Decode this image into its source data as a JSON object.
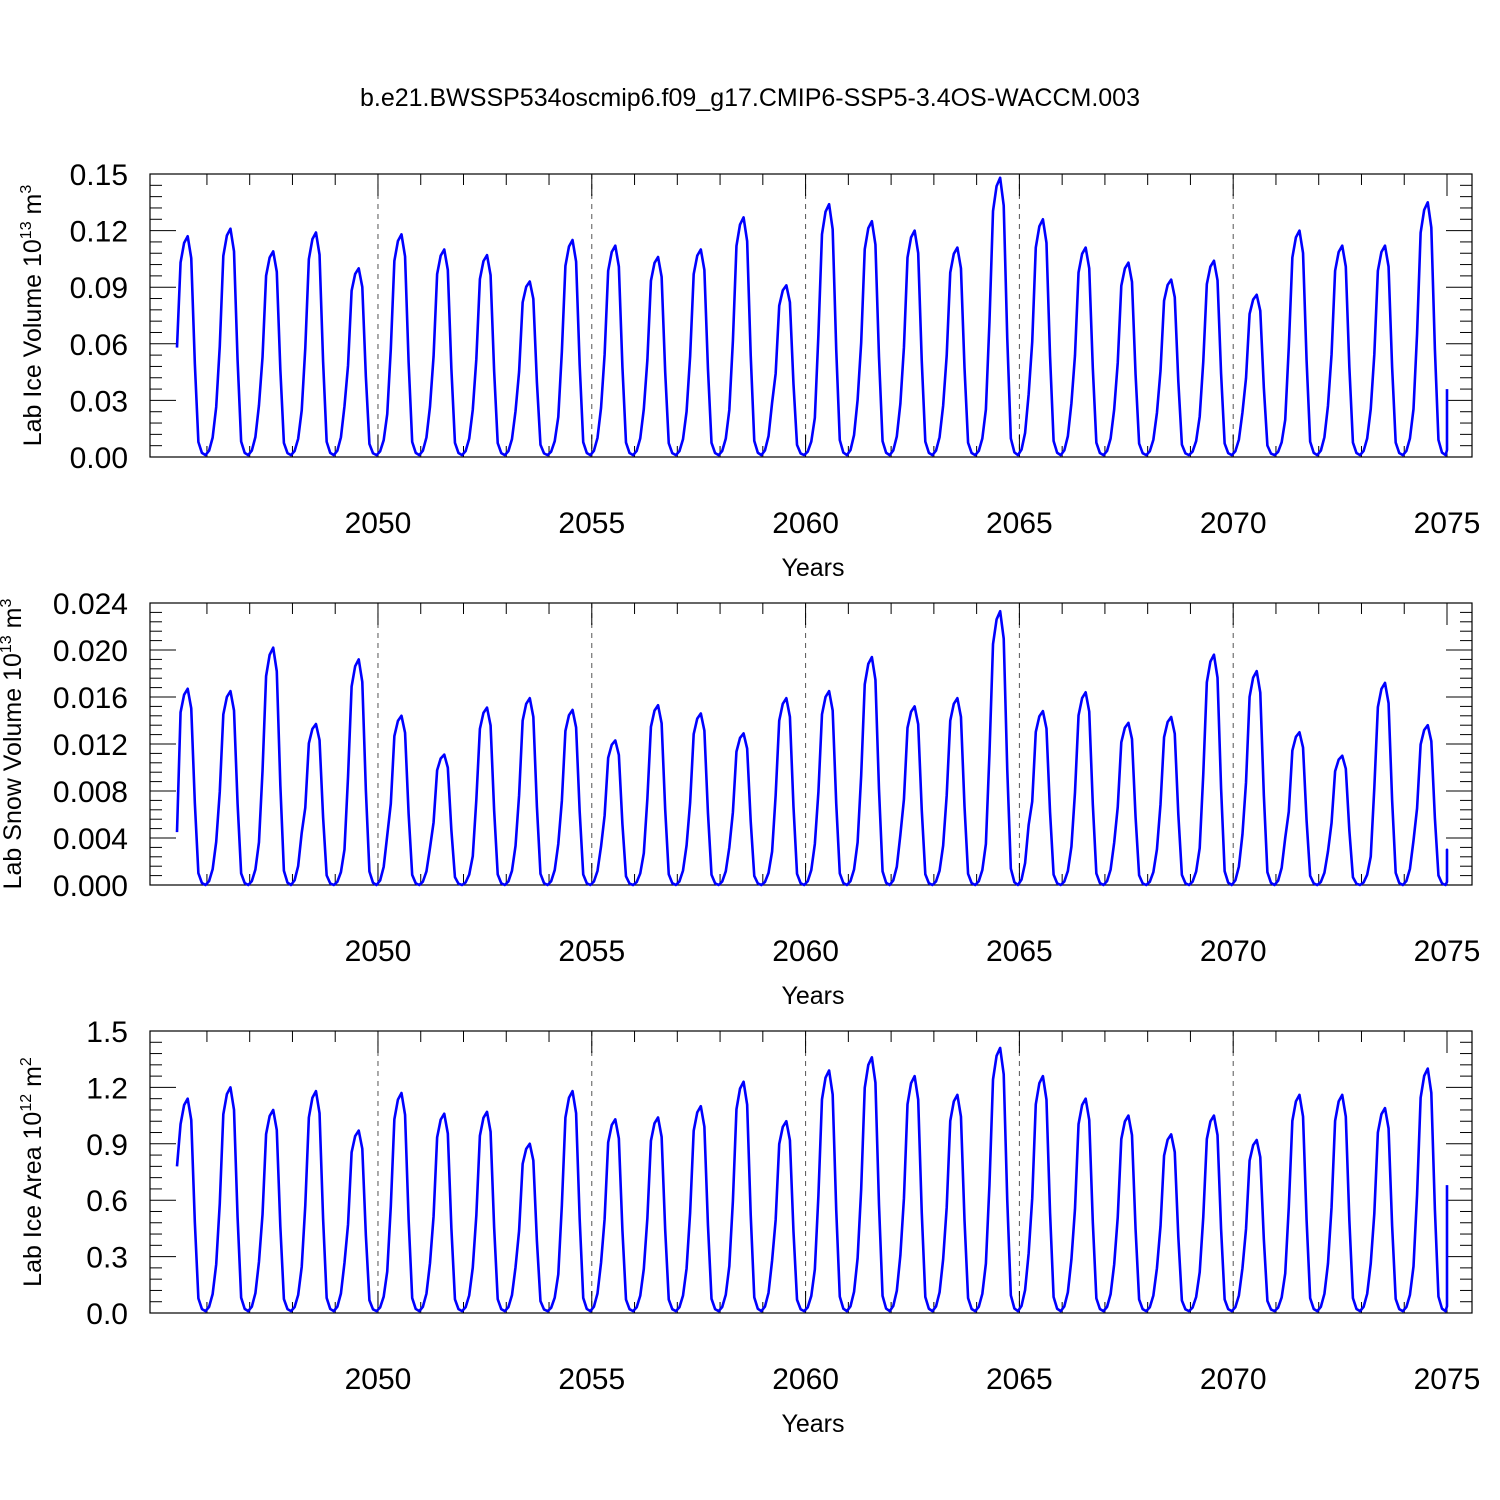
{
  "title": "b.e21.BWSSP534oscmip6.f09_g17.CMIP6-SSP5-3.4OS-WACCM.003",
  "chart_data": [
    {
      "type": "line",
      "title": "",
      "ylabel_main": "Lab Ice Volume 10",
      "ylabel_exp": "13",
      "ylabel_unit": " m",
      "ylabel_unit_exp": "3",
      "xlabel": "Years",
      "xlim": [
        2045.3,
        2075.0
      ],
      "ylim": [
        0.0,
        0.15
      ],
      "x_ticks": [
        2050,
        2055,
        2060,
        2065,
        2070,
        2075
      ],
      "x_tick_labels": [
        "2050",
        "2055",
        "2060",
        "2065",
        "2070",
        "2075"
      ],
      "y_ticks": [
        0.0,
        0.03,
        0.06,
        0.09,
        0.12,
        0.15
      ],
      "y_tick_labels": [
        "0.00",
        "0.03",
        "0.06",
        "0.09",
        "0.12",
        "0.15"
      ],
      "x_start": 2045.3,
      "color": "#0000ff",
      "annual_peaks": [
        0.117,
        0.121,
        0.109,
        0.119,
        0.1,
        0.118,
        0.11,
        0.107,
        0.093,
        0.115,
        0.112,
        0.106,
        0.11,
        0.127,
        0.091,
        0.134,
        0.125,
        0.12,
        0.111,
        0.148,
        0.126,
        0.111,
        0.103,
        0.094,
        0.104,
        0.086,
        0.12,
        0.112,
        0.112,
        0.135
      ],
      "annual_minimum": 0.001,
      "start_value": 0.058,
      "end_value": 0.036
    },
    {
      "type": "line",
      "title": "",
      "ylabel_main": "Lab Snow Volume 10",
      "ylabel_exp": "13",
      "ylabel_unit": " m",
      "ylabel_unit_exp": "3",
      "xlabel": "Years",
      "xlim": [
        2045.3,
        2075.0
      ],
      "ylim": [
        0.0,
        0.024
      ],
      "x_ticks": [
        2050,
        2055,
        2060,
        2065,
        2070,
        2075
      ],
      "x_tick_labels": [
        "2050",
        "2055",
        "2060",
        "2065",
        "2070",
        "2075"
      ],
      "y_ticks": [
        0.0,
        0.004,
        0.008,
        0.012,
        0.016,
        0.02,
        0.024
      ],
      "y_tick_labels": [
        "0.000",
        "0.004",
        "0.008",
        "0.012",
        "0.016",
        "0.020",
        "0.024"
      ],
      "x_start": 2045.3,
      "color": "#0000ff",
      "annual_peaks": [
        0.0167,
        0.0165,
        0.0202,
        0.0137,
        0.0192,
        0.0144,
        0.0111,
        0.0151,
        0.0159,
        0.0149,
        0.0123,
        0.0153,
        0.0146,
        0.0129,
        0.0159,
        0.0165,
        0.0194,
        0.0152,
        0.0159,
        0.0233,
        0.0148,
        0.0164,
        0.0138,
        0.0143,
        0.0196,
        0.0182,
        0.013,
        0.011,
        0.0172,
        0.0136
      ],
      "annual_minimum": 0.0,
      "start_value": 0.0045,
      "end_value": 0.0019
    },
    {
      "type": "line",
      "title": "",
      "ylabel_main": "Lab Ice Area 10",
      "ylabel_exp": "12",
      "ylabel_unit": " m",
      "ylabel_unit_exp": "2",
      "xlabel": "Years",
      "xlim": [
        2045.3,
        2075.0
      ],
      "ylim": [
        0.0,
        1.5
      ],
      "x_ticks": [
        2050,
        2055,
        2060,
        2065,
        2070,
        2075
      ],
      "x_tick_labels": [
        "2050",
        "2055",
        "2060",
        "2065",
        "2070",
        "2075"
      ],
      "y_ticks": [
        0.0,
        0.3,
        0.6,
        0.9,
        1.2,
        1.5
      ],
      "y_tick_labels": [
        "0.0",
        "0.3",
        "0.6",
        "0.9",
        "1.2",
        "1.5"
      ],
      "x_start": 2045.3,
      "color": "#0000ff",
      "annual_peaks": [
        1.14,
        1.2,
        1.08,
        1.18,
        0.97,
        1.17,
        1.06,
        1.07,
        0.9,
        1.18,
        1.03,
        1.04,
        1.1,
        1.23,
        1.02,
        1.29,
        1.36,
        1.26,
        1.16,
        1.41,
        1.26,
        1.14,
        1.05,
        0.95,
        1.05,
        0.92,
        1.16,
        1.16,
        1.09,
        1.3
      ],
      "annual_minimum": 0.01,
      "start_value": 0.78,
      "end_value": 0.68
    }
  ]
}
